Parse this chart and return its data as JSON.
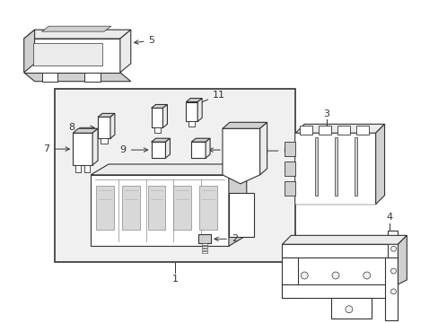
{
  "background_color": "#ffffff",
  "line_color": "#333333",
  "fill_white": "#ffffff",
  "fill_light": "#ebebeb",
  "fill_gray": "#d0d0d0",
  "lw": 0.8,
  "fontsize": 8
}
